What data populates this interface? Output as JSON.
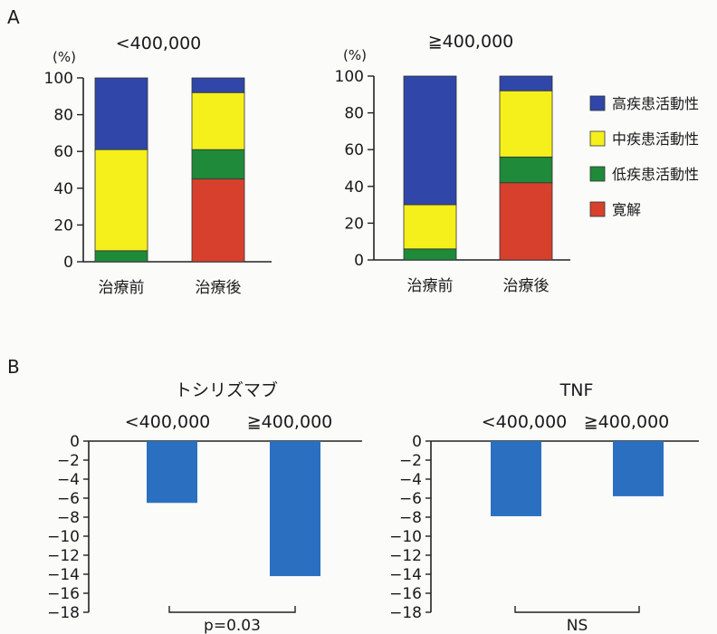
{
  "panels": [
    {
      "label": "A"
    },
    {
      "label": "B"
    }
  ],
  "chart_data": [
    {
      "type": "bar",
      "stacked": true,
      "title": "<400,000",
      "ylabel": "(%)",
      "ylim": [
        0,
        100
      ],
      "yticks": [
        "0",
        "20",
        "40",
        "60",
        "80",
        "100"
      ],
      "categories": [
        "治療前",
        "治療後"
      ],
      "series": [
        {
          "name": "寛解",
          "color": "#d8402e",
          "values": [
            0,
            45
          ]
        },
        {
          "name": "低疾患活動性",
          "color": "#1f8a3a",
          "values": [
            6,
            16
          ]
        },
        {
          "name": "中疾患活動性",
          "color": "#f5ef1c",
          "values": [
            55,
            31
          ]
        },
        {
          "name": "高疾患活動性",
          "color": "#3046a8",
          "values": [
            39,
            8
          ]
        }
      ]
    },
    {
      "type": "bar",
      "stacked": true,
      "title": "≧400,000",
      "ylabel": "(%)",
      "ylim": [
        0,
        100
      ],
      "yticks": [
        "0",
        "20",
        "40",
        "60",
        "80",
        "100"
      ],
      "categories": [
        "治療前",
        "治療後"
      ],
      "series": [
        {
          "name": "寛解",
          "color": "#d8402e",
          "values": [
            0,
            42
          ]
        },
        {
          "name": "低疾患活動性",
          "color": "#1f8a3a",
          "values": [
            6,
            14
          ]
        },
        {
          "name": "中疾患活動性",
          "color": "#f5ef1c",
          "values": [
            24,
            36
          ]
        },
        {
          "name": "高疾患活動性",
          "color": "#3046a8",
          "values": [
            70,
            8
          ]
        }
      ],
      "legend": {
        "placement": "right",
        "order": [
          "高疾患活動性",
          "中疾患活動性",
          "低疾患活動性",
          "寛解"
        ]
      }
    },
    {
      "type": "bar",
      "title": "トシリズマブ",
      "color": "#2b6fc0",
      "ylim": [
        -18,
        0
      ],
      "yticks": [
        "0",
        "−2",
        "−4",
        "−6",
        "−8",
        "−10",
        "−12",
        "−14",
        "−16",
        "−18"
      ],
      "categories": [
        "<400,000",
        "≧400,000"
      ],
      "values": [
        -6.5,
        -14.2
      ],
      "annotation": "p=0.03"
    },
    {
      "type": "bar",
      "title": "TNF",
      "color": "#2b6fc0",
      "ylim": [
        -18,
        0
      ],
      "yticks": [
        "0",
        "−2",
        "−4",
        "−6",
        "−8",
        "−10",
        "−12",
        "−14",
        "−16",
        "−18"
      ],
      "categories": [
        "<400,000",
        "≧400,000"
      ],
      "values": [
        -7.9,
        -5.8
      ],
      "annotation": "NS"
    }
  ]
}
